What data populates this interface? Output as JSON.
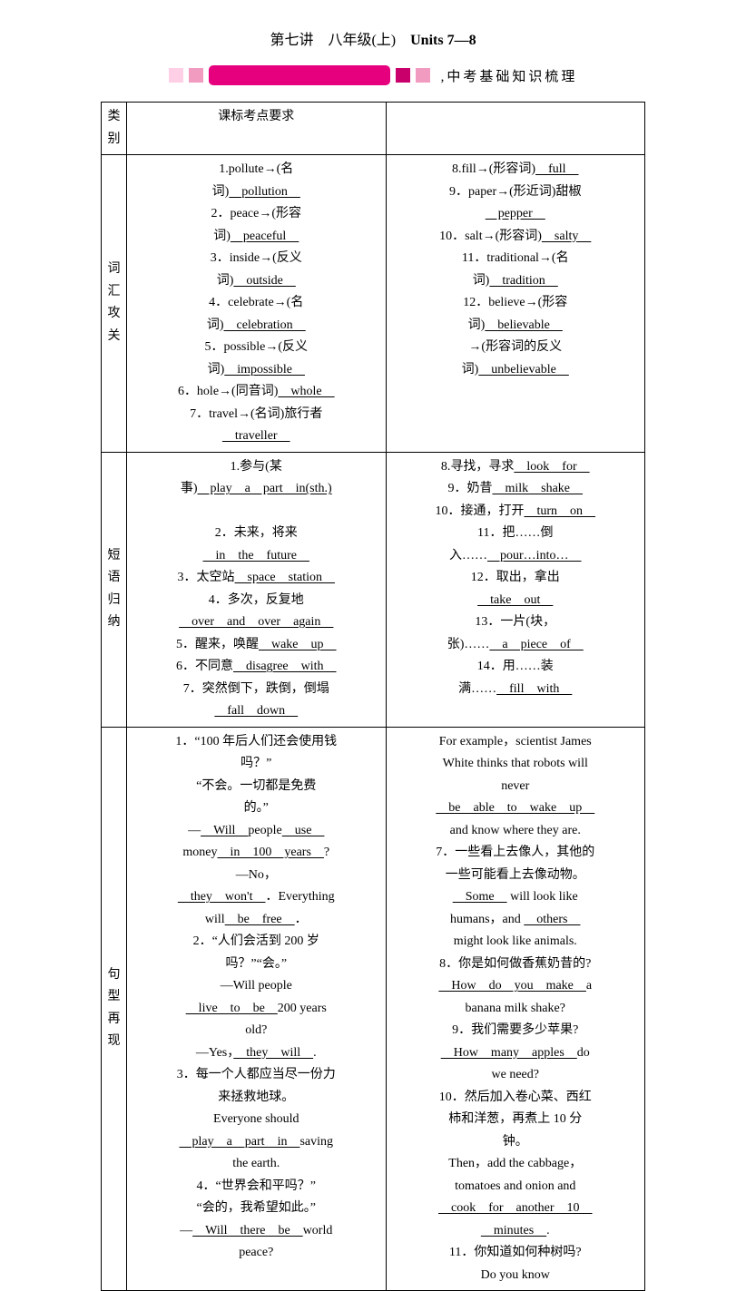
{
  "title_prefix": "第七讲　八年级(上)　",
  "title_units": "Units 7—8",
  "subtitle_prefix": ",",
  "subtitle": "中考基础知识梳理",
  "colors": {
    "pink_light": "#ffcfe5",
    "pink_mid": "#f29bc1",
    "pink_main": "#e6007e",
    "pink_dark": "#c9006b"
  },
  "headers": {
    "col1": "类别",
    "col2": "课标考点要求",
    "col3": ""
  },
  "rows": {
    "r1": {
      "label": "词汇攻关",
      "mid": [
        {
          "pre": "1.pollute→(名",
          "br": true
        },
        {
          "pre": "词)",
          "u": "　pollution　"
        },
        {
          "pre": "2．peace→(形容",
          "br": true
        },
        {
          "pre": "词)",
          "u": "　peaceful　"
        },
        {
          "pre": "3．inside→(反义",
          "br": true
        },
        {
          "pre": "词)",
          "u": "　outside　"
        },
        {
          "pre": "4．celebrate→(名",
          "br": true
        },
        {
          "pre": "词)",
          "u": "　celebration　"
        },
        {
          "pre": "5．possible→(反义",
          "br": true
        },
        {
          "pre": "词)",
          "u": "　impossible　"
        },
        {
          "pre": "6．hole→(同音词)",
          "u": "　whole　"
        },
        {
          "pre": "7．travel→(名词)旅行者",
          "br": true
        },
        {
          "pre": "",
          "u": "　traveller　"
        }
      ],
      "right": [
        {
          "pre": "8.fill→(形容词)",
          "u": "　full　"
        },
        {
          "pre": "9．paper→(形近词)甜椒",
          "br": true
        },
        {
          "pre": "",
          "u": "　pepper　"
        },
        {
          "pre": "10．salt→(形容词)",
          "u": "　salty　"
        },
        {
          "pre": "11．traditional→(名",
          "br": true
        },
        {
          "pre": "词)",
          "u": "　tradition　"
        },
        {
          "pre": "12．believe→(形容",
          "br": true
        },
        {
          "pre": "词)",
          "u": "　believable　"
        },
        {
          "pre": "→(形容词的反义",
          "br": true
        },
        {
          "pre": "词)",
          "u": "　unbelievable　"
        }
      ]
    },
    "r2": {
      "label": "短语归纳",
      "mid": [
        {
          "pre": "1.参与(某",
          "br": true
        },
        {
          "pre": "事)",
          "u": "　play　a　part　in(sth.)"
        },
        {
          "pre": "",
          "u": "　",
          "br": true,
          "blank": true
        },
        {
          "pre": "2．未来，将来",
          "br": true
        },
        {
          "pre": "",
          "u": "　in　the　future　"
        },
        {
          "pre": "3．太空站",
          "u": "　space　station　"
        },
        {
          "pre": "4．多次，反复地",
          "br": true
        },
        {
          "pre": "",
          "u": "　over　and　over　again　"
        },
        {
          "pre": "5．醒来，唤醒",
          "u": "　wake　up　"
        },
        {
          "pre": "6．不同意",
          "u": "　disagree　with　"
        },
        {
          "pre": "7．突然倒下，跌倒，倒塌",
          "br": true
        },
        {
          "pre": "",
          "u": "　fall　down　"
        }
      ],
      "right": [
        {
          "pre": "8.寻找，寻求",
          "u": "　look　for　"
        },
        {
          "pre": "9．奶昔",
          "u": "　milk　shake　"
        },
        {
          "pre": "10．接通，打开",
          "u": "　turn　on　"
        },
        {
          "pre": "11．把……倒",
          "br": true
        },
        {
          "pre": "入……",
          "u": "　pour…into…　"
        },
        {
          "pre": "12．取出，拿出",
          "br": true
        },
        {
          "pre": "",
          "u": "　take　out　"
        },
        {
          "pre": "13．一片(块，",
          "br": true
        },
        {
          "pre": "张)……",
          "u": "　a　piece　of　"
        },
        {
          "pre": "14．用……装",
          "br": true
        },
        {
          "pre": "满……",
          "u": "　fill　with　"
        }
      ]
    },
    "r3": {
      "label": "句型再现",
      "mid": [
        {
          "pre": "1．“100 年后人们还会使用钱",
          "br": true
        },
        {
          "pre": "吗？”",
          "br": true
        },
        {
          "pre": "“不会。一切都是免费",
          "br": true
        },
        {
          "pre": "的。”",
          "br": true
        },
        {
          "pre": "—",
          "u": "　Will　",
          "post": "people",
          "u2": "　use　"
        },
        {
          "pre": "money",
          "u": "　in　100　years　",
          "post": "?"
        },
        {
          "pre": "—No，",
          "br": true
        },
        {
          "pre": "",
          "u": "　they　won't　",
          "post": "．Everything"
        },
        {
          "pre": "will",
          "u": "　be　free　",
          "post": "．"
        },
        {
          "pre": "2．“人们会活到 200 岁",
          "br": true
        },
        {
          "pre": "吗？”“会。”",
          "br": true
        },
        {
          "pre": "—Will people",
          "br": true
        },
        {
          "pre": "",
          "u": "　live　to　be　",
          "post": "200 years"
        },
        {
          "pre": "old?",
          "br": true
        },
        {
          "pre": "—Yes，",
          "u": "　they　will　",
          "post": "."
        },
        {
          "pre": "3．每一个人都应当尽一份力",
          "br": true
        },
        {
          "pre": "来拯救地球。",
          "br": true
        },
        {
          "pre": "Everyone should",
          "br": true
        },
        {
          "pre": "",
          "u": "　play　a　part　in　",
          "post": "saving"
        },
        {
          "pre": "the earth.",
          "br": true
        },
        {
          "pre": "4．“世界会和平吗？”",
          "br": true
        },
        {
          "pre": "“会的，我希望如此。”",
          "br": true
        },
        {
          "pre": "—",
          "u": "　Will　there　be　",
          "post": "world"
        },
        {
          "pre": "peace?",
          "br": true
        }
      ],
      "right": [
        {
          "pre": "For example，scientist James",
          "br": true
        },
        {
          "pre": "White thinks that robots will",
          "br": true
        },
        {
          "pre": "never",
          "br": true
        },
        {
          "pre": "",
          "u": "　be　able　to　wake　up　"
        },
        {
          "pre": "and know where they are.",
          "br": true
        },
        {
          "pre": "7．一些看上去像人，其他的",
          "br": true
        },
        {
          "pre": "一些可能看上去像动物。",
          "br": true
        },
        {
          "pre": "",
          "u": "　Some　",
          "post": " will look like"
        },
        {
          "pre": "humans，and ",
          "u": "　others　"
        },
        {
          "pre": "might look like animals.",
          "br": true
        },
        {
          "pre": "8．你是如何做香蕉奶昔的?",
          "br": true
        },
        {
          "pre": "",
          "u": "　How　do　you　make　",
          "post": "a"
        },
        {
          "pre": "banana milk shake?",
          "br": true
        },
        {
          "pre": "9．我们需要多少苹果?",
          "br": true
        },
        {
          "pre": "",
          "u": "　How　many　apples　",
          "post": "do"
        },
        {
          "pre": "we need?",
          "br": true
        },
        {
          "pre": "10．然后加入卷心菜、西红",
          "br": true
        },
        {
          "pre": "柿和洋葱，再煮上 10 分",
          "br": true
        },
        {
          "pre": "钟。",
          "br": true
        },
        {
          "pre": "Then，add the cabbage，",
          "br": true
        },
        {
          "pre": "tomatoes and onion and",
          "br": true
        },
        {
          "pre": "",
          "u": "　cook　for　another　10　"
        },
        {
          "pre": "",
          "u": "　minutes　",
          "post": "."
        },
        {
          "pre": "11．你知道如何种树吗?",
          "br": true
        },
        {
          "pre": "Do you know",
          "br": true
        }
      ]
    }
  }
}
